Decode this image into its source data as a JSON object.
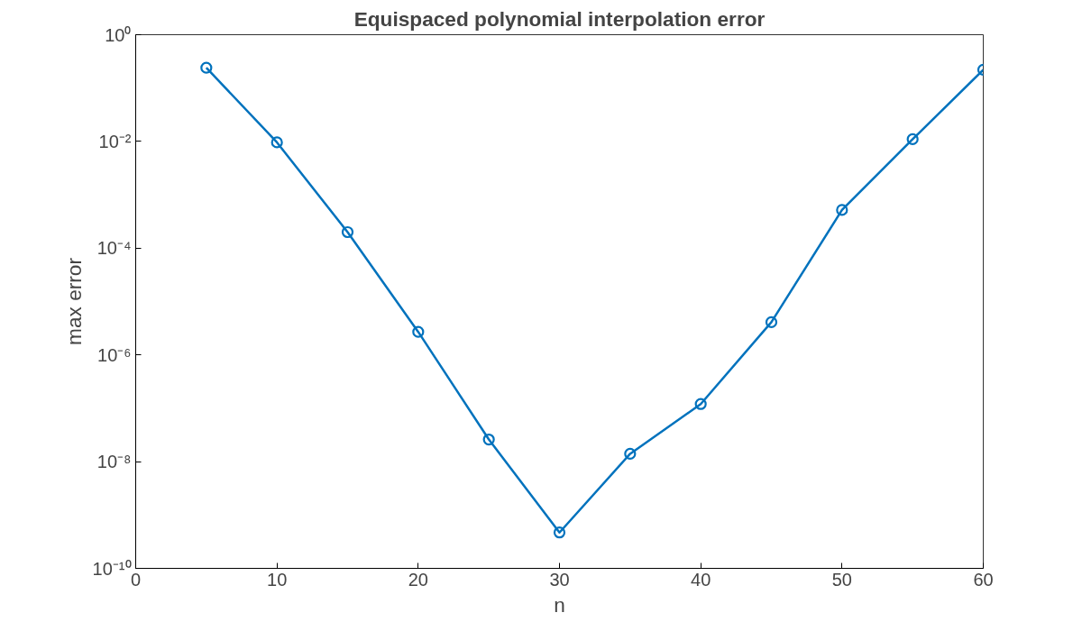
{
  "chart_data": {
    "type": "line",
    "title": "Equispaced polynomial interpolation error",
    "xlabel": "n",
    "ylabel": "max error",
    "x": [
      5,
      10,
      15,
      20,
      25,
      30,
      35,
      40,
      45,
      50,
      55,
      60
    ],
    "series": [
      {
        "color": "#0072bd",
        "values": [
          0.24,
          0.0096,
          0.0002,
          2.7e-06,
          2.6e-08,
          4.7e-10,
          1.4e-08,
          1.2e-07,
          4.1e-06,
          0.00052,
          0.011,
          0.22
        ]
      }
    ],
    "log": "y",
    "xlim": [
      0,
      60
    ],
    "ylim": [
      1e-10,
      1
    ],
    "xticks": [
      0,
      10,
      20,
      30,
      40,
      50,
      60
    ],
    "yticks": [
      {
        "value": 1e-10,
        "label": "10⁻¹⁰"
      },
      {
        "value": 1e-08,
        "label": "10⁻⁸"
      },
      {
        "value": 1e-06,
        "label": "10⁻⁶"
      },
      {
        "value": 0.0001,
        "label": "10⁻⁴"
      },
      {
        "value": 0.01,
        "label": "10⁻²"
      },
      {
        "value": 1,
        "label": "10⁰"
      }
    ],
    "grid": false,
    "marker": "circle",
    "line_style": "solid"
  }
}
